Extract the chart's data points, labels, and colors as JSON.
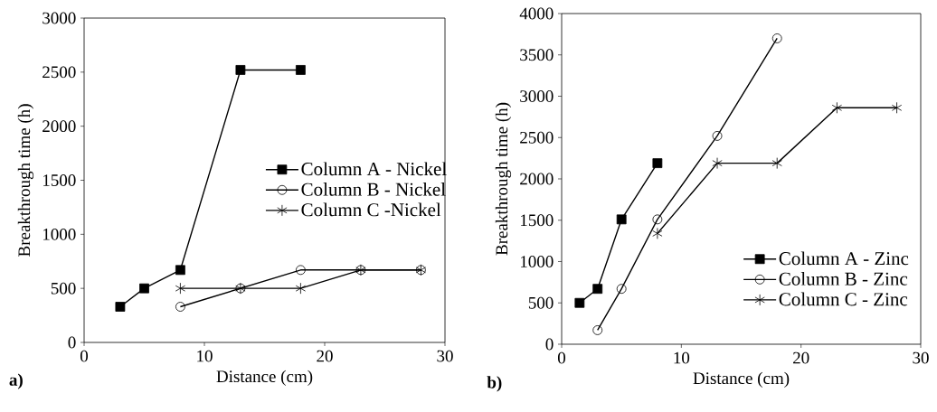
{
  "chart_data": [
    {
      "type": "line",
      "xlabel": "Distance (cm)",
      "ylabel": "Breakthrough time (h)",
      "xlim": [
        0,
        30
      ],
      "xticks": [
        0,
        10,
        20,
        30
      ],
      "ylim": [
        0,
        3000
      ],
      "yticks": [
        0,
        500,
        1000,
        1500,
        2000,
        2500,
        3000
      ],
      "legend": "right",
      "line_style": "solid",
      "annotations": [
        "a)"
      ],
      "series": [
        {
          "name": "Column A - Nickel",
          "color": "#000000",
          "marker": "square",
          "x": [
            3,
            5,
            8,
            13,
            18
          ],
          "values": [
            330,
            500,
            670,
            2520,
            2520
          ]
        },
        {
          "name": "Column B - Nickel",
          "color": "#000000",
          "marker": "circle",
          "x": [
            8,
            13,
            18,
            23,
            28
          ],
          "values": [
            330,
            500,
            670,
            670,
            670
          ]
        },
        {
          "name": "Column C -Nickel",
          "color": "#000000",
          "marker": "cross",
          "x": [
            8,
            13,
            18,
            23,
            28
          ],
          "values": [
            500,
            500,
            500,
            670,
            670
          ]
        }
      ]
    },
    {
      "type": "line",
      "xlabel": "Distance (cm)",
      "ylabel": "Breakthrough time (h)",
      "xlim": [
        0,
        30
      ],
      "xticks": [
        0,
        10,
        20,
        30
      ],
      "ylim": [
        0,
        4000
      ],
      "yticks": [
        0,
        500,
        1000,
        1500,
        2000,
        2500,
        3000,
        3500,
        4000
      ],
      "legend": "bottom right",
      "line_style": "solid",
      "annotations": [
        "b)"
      ],
      "series": [
        {
          "name": "Column A - Zinc",
          "color": "#000000",
          "marker": "square",
          "x": [
            1.5,
            3,
            5,
            8
          ],
          "values": [
            500,
            670,
            1510,
            2190
          ]
        },
        {
          "name": "Column B - Zinc",
          "color": "#000000",
          "marker": "circle",
          "x": [
            3,
            5,
            8,
            13,
            18
          ],
          "values": [
            170,
            670,
            1510,
            2520,
            3700
          ]
        },
        {
          "name": "Column C - Zinc",
          "color": "#000000",
          "marker": "cross",
          "x": [
            8,
            13,
            18,
            23,
            28
          ],
          "values": [
            1340,
            2190,
            2190,
            2860,
            2860
          ]
        }
      ]
    }
  ]
}
